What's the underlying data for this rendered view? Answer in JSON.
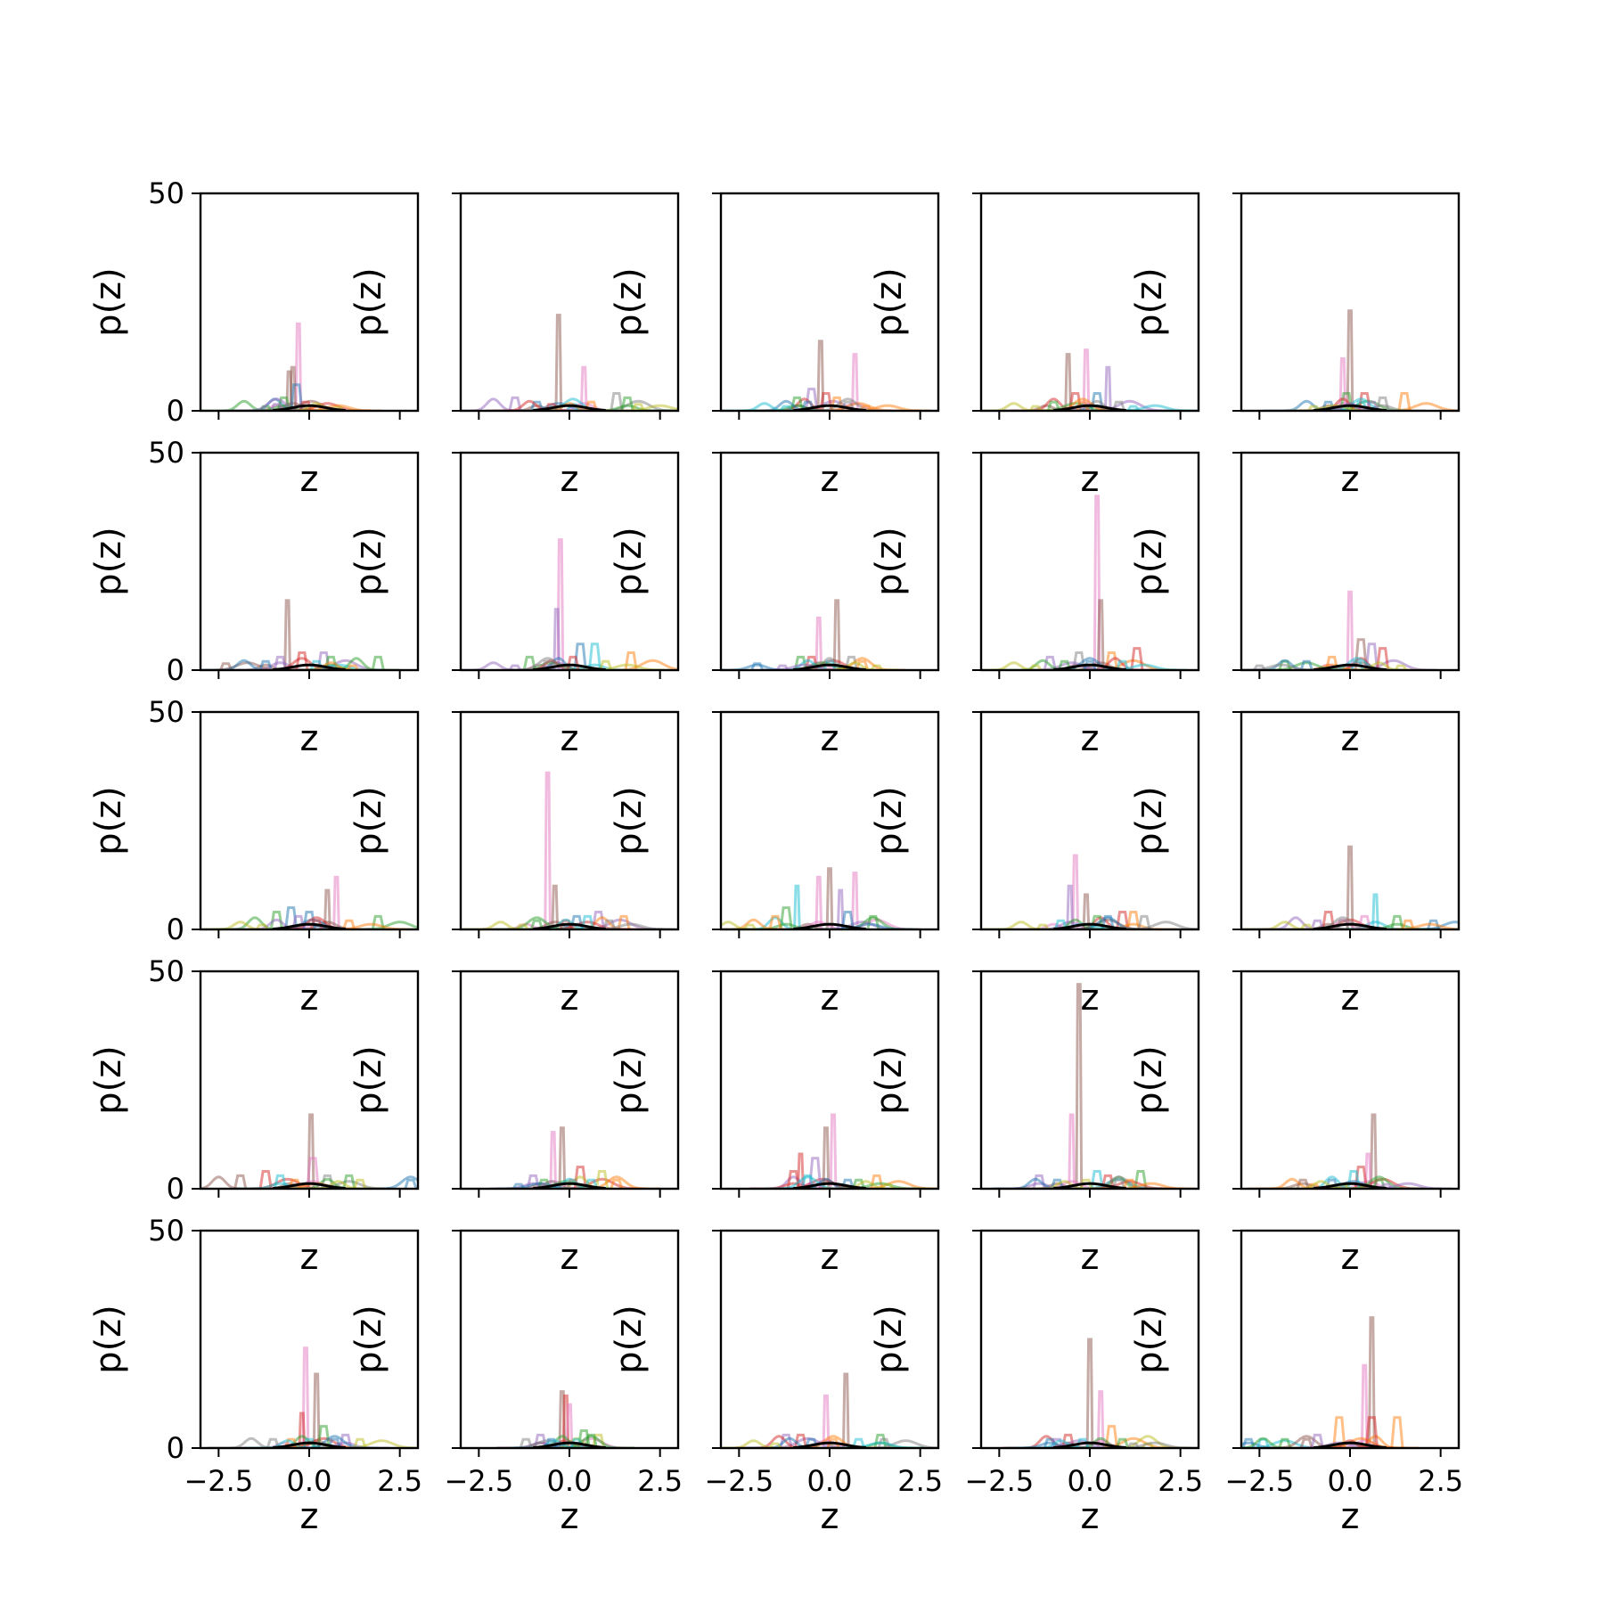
{
  "chart_data": {
    "type": "line",
    "layout": {
      "rows": 5,
      "cols": 5
    },
    "xlabel": "z",
    "ylabel": "p(z)",
    "xlim": [
      -3.0,
      3.0
    ],
    "ylim": [
      0,
      50
    ],
    "xticks": [
      -2.5,
      0.0,
      2.5
    ],
    "xtick_labels": [
      "−2.5",
      "0.0",
      "2.5"
    ],
    "yticks": [
      0,
      50
    ],
    "ytick_labels": [
      "0",
      "50"
    ],
    "grid": false,
    "legend": "none",
    "series_colors": [
      "#1f77b4",
      "#ff7f0e",
      "#2ca02c",
      "#d62728",
      "#9467bd",
      "#8c564b",
      "#e377c2",
      "#7f7f7f",
      "#bcbd22",
      "#17becf"
    ],
    "panels": [
      {
        "peaks": [
          [
            -0.3,
            20,
            6
          ],
          [
            -0.45,
            10,
            5
          ],
          [
            -0.55,
            9,
            5
          ],
          [
            -0.35,
            6,
            0
          ],
          [
            -0.7,
            3,
            2
          ],
          [
            -0.1,
            2,
            3
          ],
          [
            -1.2,
            1,
            2
          ],
          [
            -0.9,
            1.5,
            4
          ],
          [
            0.2,
            1,
            1
          ],
          [
            0.8,
            0.8,
            8
          ]
        ]
      },
      {
        "peaks": [
          [
            -0.3,
            22,
            5
          ],
          [
            0.4,
            10,
            6
          ],
          [
            1.3,
            4,
            7
          ],
          [
            -1.5,
            3,
            4
          ],
          [
            1.6,
            3,
            2
          ],
          [
            -0.9,
            2,
            0
          ],
          [
            -0.5,
            1.5,
            3
          ],
          [
            0.1,
            1.5,
            9
          ],
          [
            1.9,
            1.5,
            8
          ],
          [
            0.6,
            2,
            1
          ]
        ]
      },
      {
        "peaks": [
          [
            -0.25,
            16,
            5
          ],
          [
            0.7,
            13,
            6
          ],
          [
            -0.5,
            5,
            4
          ],
          [
            -0.1,
            4,
            3
          ],
          [
            -0.9,
            3,
            2
          ],
          [
            0.2,
            3,
            1
          ],
          [
            -0.6,
            2,
            0
          ],
          [
            0.5,
            2,
            7
          ],
          [
            1.0,
            1,
            1
          ],
          [
            -1.2,
            1,
            9
          ]
        ]
      },
      {
        "peaks": [
          [
            -0.6,
            13,
            5
          ],
          [
            -0.1,
            14,
            6
          ],
          [
            0.5,
            10,
            4
          ],
          [
            -0.4,
            4,
            3
          ],
          [
            0.2,
            4,
            0
          ],
          [
            -1.0,
            2,
            2
          ],
          [
            0.8,
            2,
            7
          ],
          [
            -0.2,
            2,
            1
          ],
          [
            1.2,
            1,
            9
          ],
          [
            -1.5,
            1,
            8
          ]
        ]
      },
      {
        "peaks": [
          [
            0.0,
            23,
            5
          ],
          [
            -0.2,
            12,
            6
          ],
          [
            -0.1,
            4,
            2
          ],
          [
            0.4,
            4,
            3
          ],
          [
            0.9,
            3,
            7
          ],
          [
            1.5,
            4,
            1
          ],
          [
            -0.6,
            2,
            0
          ],
          [
            0.3,
            2,
            9
          ],
          [
            -1.0,
            1,
            8
          ],
          [
            0.6,
            2,
            4
          ]
        ]
      },
      {
        "peaks": [
          [
            -0.6,
            16,
            5
          ],
          [
            -0.8,
            3,
            4
          ],
          [
            0.4,
            4,
            4
          ],
          [
            1.9,
            3,
            2
          ],
          [
            0.6,
            3,
            2
          ],
          [
            -2.3,
            1.5,
            5
          ],
          [
            -1.2,
            2,
            0
          ],
          [
            -0.2,
            4,
            3
          ],
          [
            0.2,
            2,
            9
          ],
          [
            1.2,
            1,
            1
          ]
        ]
      },
      {
        "peaks": [
          [
            -0.25,
            30,
            6
          ],
          [
            -0.35,
            14,
            4
          ],
          [
            1.7,
            4,
            1
          ],
          [
            0.3,
            6,
            0
          ],
          [
            0.7,
            6,
            9
          ],
          [
            -1.1,
            3,
            2
          ],
          [
            0.1,
            3,
            3
          ],
          [
            -0.6,
            2,
            7
          ],
          [
            1.0,
            2,
            8
          ],
          [
            -1.5,
            1,
            4
          ]
        ]
      },
      {
        "peaks": [
          [
            0.2,
            16,
            5
          ],
          [
            -0.3,
            12,
            6
          ],
          [
            -0.5,
            3,
            3
          ],
          [
            0.6,
            3,
            7
          ],
          [
            -2.0,
            1.5,
            0
          ],
          [
            -0.8,
            3,
            2
          ],
          [
            0.0,
            2,
            9
          ],
          [
            0.9,
            2,
            1
          ],
          [
            -1.3,
            1,
            4
          ],
          [
            1.3,
            1,
            8
          ]
        ]
      },
      {
        "peaks": [
          [
            0.2,
            40,
            6
          ],
          [
            0.3,
            16,
            5
          ],
          [
            0.6,
            4,
            1
          ],
          [
            1.3,
            5,
            3
          ],
          [
            -0.3,
            4,
            7
          ],
          [
            -1.1,
            3,
            4
          ],
          [
            -0.7,
            2,
            2
          ],
          [
            0.0,
            2,
            0
          ],
          [
            0.9,
            2,
            9
          ],
          [
            -1.5,
            1,
            8
          ]
        ]
      },
      {
        "peaks": [
          [
            0.0,
            18,
            6
          ],
          [
            0.3,
            7,
            5
          ],
          [
            0.6,
            6,
            4
          ],
          [
            0.9,
            5,
            3
          ],
          [
            -0.5,
            3,
            1
          ],
          [
            -1.8,
            2,
            2
          ],
          [
            -1.2,
            2,
            0
          ],
          [
            0.2,
            2,
            9
          ],
          [
            -2.5,
            1,
            7
          ],
          [
            1.4,
            1,
            8
          ]
        ]
      },
      {
        "peaks": [
          [
            0.75,
            12,
            6
          ],
          [
            0.5,
            9,
            5
          ],
          [
            -0.5,
            5,
            0
          ],
          [
            -0.9,
            4,
            2
          ],
          [
            0.0,
            4,
            0
          ],
          [
            1.9,
            3,
            2
          ],
          [
            -0.3,
            3,
            4
          ],
          [
            0.2,
            2,
            3
          ],
          [
            1.1,
            2,
            1
          ],
          [
            -1.3,
            1,
            8
          ]
        ]
      },
      {
        "peaks": [
          [
            -0.6,
            36,
            6
          ],
          [
            -0.4,
            10,
            5
          ],
          [
            0.8,
            4,
            4
          ],
          [
            1.5,
            3,
            1
          ],
          [
            0.2,
            3,
            0
          ],
          [
            -0.1,
            2,
            3
          ],
          [
            0.5,
            3,
            9
          ],
          [
            -0.9,
            2,
            2
          ],
          [
            1.1,
            2,
            7
          ],
          [
            -1.3,
            1,
            8
          ]
        ]
      },
      {
        "peaks": [
          [
            0.0,
            14,
            5
          ],
          [
            -0.3,
            12,
            6
          ],
          [
            0.7,
            13,
            6
          ],
          [
            -0.9,
            10,
            9
          ],
          [
            -1.2,
            5,
            2
          ],
          [
            0.3,
            9,
            4
          ],
          [
            -1.5,
            3,
            1
          ],
          [
            1.2,
            3,
            2
          ],
          [
            0.5,
            4,
            0
          ],
          [
            -2.2,
            1,
            8
          ]
        ]
      },
      {
        "peaks": [
          [
            -0.4,
            17,
            6
          ],
          [
            -0.55,
            10,
            4
          ],
          [
            -0.1,
            8,
            5
          ],
          [
            0.9,
            4,
            3
          ],
          [
            1.2,
            4,
            1
          ],
          [
            1.5,
            3,
            7
          ],
          [
            0.2,
            3,
            2
          ],
          [
            0.5,
            3,
            0
          ],
          [
            -0.8,
            2,
            9
          ],
          [
            -1.3,
            1,
            8
          ]
        ]
      },
      {
        "peaks": [
          [
            0.0,
            19,
            5
          ],
          [
            0.7,
            8,
            9
          ],
          [
            -0.6,
            4,
            3
          ],
          [
            -0.9,
            2,
            4
          ],
          [
            1.3,
            3,
            2
          ],
          [
            2.3,
            2,
            0
          ],
          [
            0.4,
            3,
            6
          ],
          [
            -0.2,
            2,
            7
          ],
          [
            1.6,
            2,
            1
          ],
          [
            -1.2,
            1,
            8
          ]
        ]
      },
      {
        "peaks": [
          [
            0.05,
            17,
            5
          ],
          [
            0.1,
            7,
            6
          ],
          [
            -1.2,
            4,
            3
          ],
          [
            -1.9,
            3,
            5
          ],
          [
            -0.8,
            3,
            9
          ],
          [
            0.5,
            3,
            7
          ],
          [
            1.1,
            3,
            2
          ],
          [
            2.8,
            2,
            0
          ],
          [
            -0.4,
            2,
            1
          ],
          [
            1.4,
            2,
            8
          ]
        ]
      },
      {
        "peaks": [
          [
            -0.2,
            14,
            5
          ],
          [
            -0.45,
            13,
            6
          ],
          [
            0.3,
            5,
            3
          ],
          [
            0.9,
            4,
            8
          ],
          [
            -1.0,
            3,
            4
          ],
          [
            -0.7,
            2,
            2
          ],
          [
            0.6,
            2,
            9
          ],
          [
            1.3,
            2,
            1
          ],
          [
            -1.4,
            1,
            0
          ],
          [
            0.1,
            2,
            7
          ]
        ]
      },
      {
        "peaks": [
          [
            0.1,
            17,
            6
          ],
          [
            -0.1,
            14,
            5
          ],
          [
            -0.8,
            8,
            3
          ],
          [
            -0.4,
            7,
            4
          ],
          [
            -1.0,
            4,
            3
          ],
          [
            1.3,
            3,
            1
          ],
          [
            0.5,
            2,
            0
          ],
          [
            -0.6,
            3,
            9
          ],
          [
            0.8,
            2,
            2
          ],
          [
            1.6,
            1,
            8
          ]
        ]
      },
      {
        "peaks": [
          [
            -0.3,
            47,
            5
          ],
          [
            -0.5,
            17,
            6
          ],
          [
            0.2,
            4,
            9
          ],
          [
            1.4,
            4,
            2
          ],
          [
            -1.4,
            3,
            4
          ],
          [
            0.5,
            3,
            3
          ],
          [
            -0.9,
            2,
            0
          ],
          [
            0.8,
            2,
            7
          ],
          [
            1.1,
            2,
            1
          ],
          [
            -0.1,
            2,
            8
          ]
        ]
      },
      {
        "peaks": [
          [
            0.65,
            17,
            5
          ],
          [
            0.5,
            8,
            6
          ],
          [
            0.3,
            5,
            3
          ],
          [
            0.1,
            4,
            9
          ],
          [
            -1.3,
            2,
            5
          ],
          [
            -0.5,
            2,
            0
          ],
          [
            -1.0,
            1,
            1
          ],
          [
            0.8,
            2,
            2
          ],
          [
            1.0,
            1,
            4
          ],
          [
            -0.2,
            1,
            8
          ]
        ]
      },
      {
        "peaks": [
          [
            -0.1,
            23,
            6
          ],
          [
            0.2,
            17,
            5
          ],
          [
            -0.2,
            8,
            3
          ],
          [
            0.4,
            5,
            2
          ],
          [
            1.0,
            3,
            4
          ],
          [
            1.4,
            2,
            8
          ],
          [
            -1.0,
            2,
            7
          ],
          [
            0.7,
            2,
            0
          ],
          [
            -0.5,
            2,
            1
          ],
          [
            0.0,
            2,
            9
          ]
        ]
      },
      {
        "peaks": [
          [
            -0.2,
            13,
            5
          ],
          [
            -0.1,
            12,
            3
          ],
          [
            0.0,
            10,
            6
          ],
          [
            0.4,
            4,
            2
          ],
          [
            -0.8,
            3,
            4
          ],
          [
            -1.2,
            2,
            7
          ],
          [
            0.8,
            3,
            8
          ],
          [
            0.6,
            3,
            2
          ],
          [
            -0.5,
            2,
            0
          ],
          [
            0.2,
            2,
            9
          ]
        ]
      },
      {
        "peaks": [
          [
            0.45,
            17,
            5
          ],
          [
            -0.1,
            12,
            6
          ],
          [
            -1.2,
            3,
            4
          ],
          [
            -0.8,
            3,
            3
          ],
          [
            1.4,
            3,
            2
          ],
          [
            1.5,
            2,
            7
          ],
          [
            -0.5,
            2,
            0
          ],
          [
            0.1,
            2,
            1
          ],
          [
            0.8,
            2,
            9
          ],
          [
            -1.5,
            1,
            8
          ]
        ]
      },
      {
        "peaks": [
          [
            0.0,
            25,
            5
          ],
          [
            0.3,
            13,
            6
          ],
          [
            0.6,
            5,
            1
          ],
          [
            -0.6,
            3,
            3
          ],
          [
            -1.1,
            2,
            0
          ],
          [
            -0.9,
            2,
            4
          ],
          [
            0.9,
            2,
            2
          ],
          [
            1.6,
            1,
            8
          ],
          [
            1.2,
            1,
            7
          ],
          [
            -0.2,
            2,
            9
          ]
        ]
      },
      {
        "peaks": [
          [
            0.6,
            30,
            5
          ],
          [
            0.4,
            19,
            6
          ],
          [
            -0.3,
            7,
            1
          ],
          [
            1.3,
            7,
            1
          ],
          [
            -2.8,
            2,
            0
          ],
          [
            -2.4,
            2,
            9
          ],
          [
            -1.8,
            2,
            2
          ],
          [
            -1.2,
            2,
            5
          ],
          [
            -0.9,
            3,
            4
          ],
          [
            0.6,
            7,
            3
          ]
        ]
      }
    ]
  }
}
